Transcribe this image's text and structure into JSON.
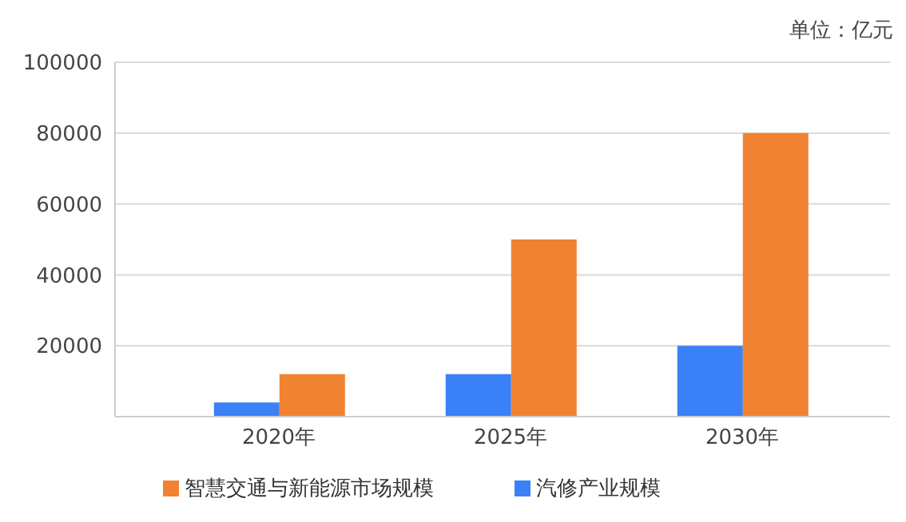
{
  "chart_data": {
    "type": "bar",
    "categories": [
      "2020年",
      "2025年",
      "2030年"
    ],
    "series": [
      {
        "name": "汽修产业规模",
        "color": "#3a80f6",
        "values": [
          4000,
          12000,
          20000
        ]
      },
      {
        "name": "智慧交通与新能源市场规模",
        "color": "#f08232",
        "values": [
          12000,
          50000,
          80000
        ]
      }
    ],
    "ylim": [
      0,
      100000
    ],
    "yticks": [
      20000,
      40000,
      60000,
      80000,
      100000
    ],
    "grid": "y",
    "legend": "bottom",
    "annotations": [
      "单位：亿元"
    ]
  }
}
